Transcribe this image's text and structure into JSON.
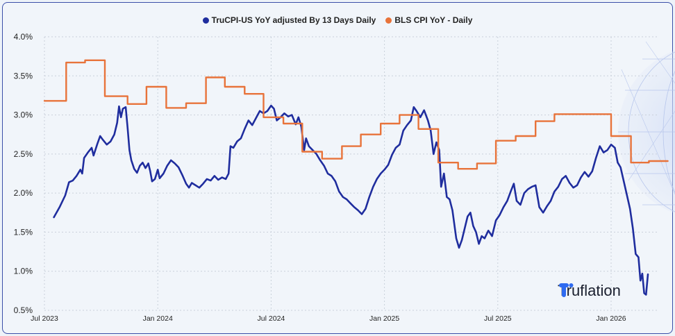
{
  "chart_data": {
    "type": "line",
    "title": "",
    "x_tick_labels": [
      "Jul 2023",
      "Jan 2024",
      "Jul 2024",
      "Jan 2025",
      "Jul 2025",
      "Jan 2026"
    ],
    "y_tick_labels": [
      "4.0%",
      "3.5%",
      "3.0%",
      "2.5%",
      "2.0%",
      "1.5%",
      "1.0%",
      "0.5%"
    ],
    "ylim": [
      0.5,
      4.0
    ],
    "y_unit": "%",
    "x_range_months": [
      0,
      32
    ],
    "series": [
      {
        "name": "TruCPI-US YoY adjusted By 13 Days Daily",
        "color": "#1f2d9e",
        "points": [
          [
            0.5,
            1.69
          ],
          [
            0.8,
            1.82
          ],
          [
            1.1,
            1.97
          ],
          [
            1.3,
            2.14
          ],
          [
            1.5,
            2.16
          ],
          [
            1.7,
            2.22
          ],
          [
            1.9,
            2.3
          ],
          [
            2.0,
            2.25
          ],
          [
            2.1,
            2.45
          ],
          [
            2.3,
            2.52
          ],
          [
            2.5,
            2.58
          ],
          [
            2.6,
            2.48
          ],
          [
            2.8,
            2.63
          ],
          [
            2.95,
            2.73
          ],
          [
            3.1,
            2.68
          ],
          [
            3.3,
            2.62
          ],
          [
            3.5,
            2.66
          ],
          [
            3.7,
            2.75
          ],
          [
            3.85,
            2.9
          ],
          [
            3.95,
            3.11
          ],
          [
            4.05,
            2.97
          ],
          [
            4.15,
            3.08
          ],
          [
            4.3,
            3.1
          ],
          [
            4.4,
            2.84
          ],
          [
            4.5,
            2.55
          ],
          [
            4.6,
            2.42
          ],
          [
            4.75,
            2.31
          ],
          [
            4.9,
            2.26
          ],
          [
            5.05,
            2.35
          ],
          [
            5.2,
            2.39
          ],
          [
            5.35,
            2.32
          ],
          [
            5.5,
            2.38
          ],
          [
            5.6,
            2.28
          ],
          [
            5.7,
            2.15
          ],
          [
            5.85,
            2.18
          ],
          [
            6.0,
            2.3
          ],
          [
            6.1,
            2.19
          ],
          [
            6.3,
            2.25
          ],
          [
            6.5,
            2.35
          ],
          [
            6.7,
            2.42
          ],
          [
            6.9,
            2.38
          ],
          [
            7.1,
            2.33
          ],
          [
            7.3,
            2.23
          ],
          [
            7.5,
            2.12
          ],
          [
            7.65,
            2.07
          ],
          [
            7.8,
            2.13
          ],
          [
            8.0,
            2.1
          ],
          [
            8.2,
            2.07
          ],
          [
            8.4,
            2.12
          ],
          [
            8.6,
            2.18
          ],
          [
            8.8,
            2.16
          ],
          [
            9.0,
            2.22
          ],
          [
            9.2,
            2.17
          ],
          [
            9.4,
            2.2
          ],
          [
            9.6,
            2.18
          ],
          [
            9.75,
            2.25
          ],
          [
            9.85,
            2.6
          ],
          [
            10.0,
            2.58
          ],
          [
            10.2,
            2.66
          ],
          [
            10.4,
            2.7
          ],
          [
            10.6,
            2.82
          ],
          [
            10.8,
            2.93
          ],
          [
            11.0,
            2.87
          ],
          [
            11.2,
            2.96
          ],
          [
            11.4,
            3.05
          ],
          [
            11.6,
            3.02
          ],
          [
            11.8,
            3.05
          ],
          [
            12.0,
            3.12
          ],
          [
            12.15,
            3.08
          ],
          [
            12.3,
            2.93
          ],
          [
            12.5,
            2.97
          ],
          [
            12.7,
            3.02
          ],
          [
            12.9,
            2.98
          ],
          [
            13.1,
            3.0
          ],
          [
            13.3,
            2.88
          ],
          [
            13.45,
            2.97
          ],
          [
            13.6,
            2.85
          ],
          [
            13.75,
            2.55
          ],
          [
            13.85,
            2.7
          ],
          [
            14.0,
            2.6
          ],
          [
            14.2,
            2.55
          ],
          [
            14.4,
            2.5
          ],
          [
            14.6,
            2.42
          ],
          [
            14.8,
            2.35
          ],
          [
            15.0,
            2.25
          ],
          [
            15.2,
            2.22
          ],
          [
            15.4,
            2.15
          ],
          [
            15.6,
            2.02
          ],
          [
            15.8,
            1.95
          ],
          [
            16.0,
            1.92
          ],
          [
            16.2,
            1.87
          ],
          [
            16.4,
            1.82
          ],
          [
            16.6,
            1.78
          ],
          [
            16.8,
            1.73
          ],
          [
            17.0,
            1.8
          ],
          [
            17.2,
            1.95
          ],
          [
            17.4,
            2.08
          ],
          [
            17.6,
            2.18
          ],
          [
            17.8,
            2.25
          ],
          [
            18.0,
            2.3
          ],
          [
            18.2,
            2.36
          ],
          [
            18.4,
            2.49
          ],
          [
            18.6,
            2.58
          ],
          [
            18.8,
            2.62
          ],
          [
            19.0,
            2.8
          ],
          [
            19.2,
            2.87
          ],
          [
            19.4,
            2.93
          ],
          [
            19.55,
            3.1
          ],
          [
            19.7,
            3.05
          ],
          [
            19.9,
            2.97
          ],
          [
            20.1,
            3.06
          ],
          [
            20.3,
            2.93
          ],
          [
            20.45,
            2.8
          ],
          [
            20.6,
            2.5
          ],
          [
            20.75,
            2.65
          ],
          [
            20.9,
            2.55
          ],
          [
            21.0,
            2.08
          ],
          [
            21.15,
            2.25
          ],
          [
            21.3,
            1.95
          ],
          [
            21.45,
            1.92
          ],
          [
            21.6,
            1.78
          ],
          [
            21.8,
            1.42
          ],
          [
            21.95,
            1.3
          ],
          [
            22.1,
            1.4
          ],
          [
            22.25,
            1.55
          ],
          [
            22.4,
            1.7
          ],
          [
            22.55,
            1.75
          ],
          [
            22.7,
            1.58
          ],
          [
            22.85,
            1.5
          ],
          [
            23.0,
            1.35
          ],
          [
            23.15,
            1.45
          ],
          [
            23.3,
            1.42
          ],
          [
            23.5,
            1.52
          ],
          [
            23.7,
            1.45
          ],
          [
            23.9,
            1.65
          ],
          [
            24.1,
            1.72
          ],
          [
            24.3,
            1.82
          ],
          [
            24.5,
            1.9
          ],
          [
            24.7,
            2.03
          ],
          [
            24.85,
            2.12
          ],
          [
            25.0,
            1.9
          ],
          [
            25.2,
            1.85
          ],
          [
            25.4,
            2.0
          ],
          [
            25.6,
            2.05
          ],
          [
            25.8,
            2.08
          ],
          [
            26.0,
            2.1
          ],
          [
            26.2,
            1.82
          ],
          [
            26.4,
            1.75
          ],
          [
            26.6,
            1.83
          ],
          [
            26.8,
            1.9
          ],
          [
            27.0,
            2.02
          ],
          [
            27.2,
            2.08
          ],
          [
            27.4,
            2.18
          ],
          [
            27.6,
            2.22
          ],
          [
            27.8,
            2.13
          ],
          [
            28.0,
            2.07
          ],
          [
            28.2,
            2.1
          ],
          [
            28.4,
            2.2
          ],
          [
            28.6,
            2.27
          ],
          [
            28.8,
            2.21
          ],
          [
            29.0,
            2.28
          ],
          [
            29.2,
            2.45
          ],
          [
            29.4,
            2.6
          ],
          [
            29.6,
            2.52
          ],
          [
            29.8,
            2.55
          ],
          [
            30.0,
            2.62
          ],
          [
            30.2,
            2.58
          ],
          [
            30.35,
            2.39
          ],
          [
            30.5,
            2.33
          ],
          [
            30.7,
            2.12
          ],
          [
            30.85,
            1.96
          ],
          [
            31.0,
            1.8
          ],
          [
            31.15,
            1.55
          ],
          [
            31.3,
            1.22
          ],
          [
            31.45,
            1.18
          ],
          [
            31.55,
            0.88
          ],
          [
            31.65,
            0.97
          ],
          [
            31.75,
            0.72
          ],
          [
            31.85,
            0.7
          ],
          [
            31.95,
            0.96
          ]
        ]
      },
      {
        "name": "BLS CPI YoY - Daily",
        "color": "#e8733a",
        "points": [
          [
            0,
            3.18
          ],
          [
            1.15,
            3.18
          ],
          [
            1.15,
            3.67
          ],
          [
            2.15,
            3.67
          ],
          [
            2.15,
            3.7
          ],
          [
            3.2,
            3.7
          ],
          [
            3.2,
            3.24
          ],
          [
            4.4,
            3.24
          ],
          [
            4.4,
            3.14
          ],
          [
            5.4,
            3.14
          ],
          [
            5.4,
            3.36
          ],
          [
            6.45,
            3.36
          ],
          [
            6.45,
            3.09
          ],
          [
            7.5,
            3.09
          ],
          [
            7.5,
            3.15
          ],
          [
            8.55,
            3.15
          ],
          [
            8.55,
            3.48
          ],
          [
            9.55,
            3.48
          ],
          [
            9.55,
            3.36
          ],
          [
            10.6,
            3.36
          ],
          [
            10.6,
            3.27
          ],
          [
            11.6,
            3.27
          ],
          [
            11.6,
            2.97
          ],
          [
            12.65,
            2.97
          ],
          [
            12.65,
            2.89
          ],
          [
            13.65,
            2.89
          ],
          [
            13.65,
            2.53
          ],
          [
            14.7,
            2.53
          ],
          [
            14.7,
            2.44
          ],
          [
            15.75,
            2.44
          ],
          [
            15.75,
            2.6
          ],
          [
            16.75,
            2.6
          ],
          [
            16.75,
            2.75
          ],
          [
            17.8,
            2.75
          ],
          [
            17.8,
            2.89
          ],
          [
            18.8,
            2.89
          ],
          [
            18.8,
            3.0
          ],
          [
            19.8,
            3.0
          ],
          [
            19.8,
            2.82
          ],
          [
            20.85,
            2.82
          ],
          [
            20.85,
            2.39
          ],
          [
            21.9,
            2.39
          ],
          [
            21.9,
            2.31
          ],
          [
            22.9,
            2.31
          ],
          [
            22.9,
            2.38
          ],
          [
            23.9,
            2.38
          ],
          [
            23.9,
            2.67
          ],
          [
            24.95,
            2.67
          ],
          [
            24.95,
            2.73
          ],
          [
            26.0,
            2.73
          ],
          [
            26.0,
            2.92
          ],
          [
            27.0,
            2.92
          ],
          [
            27.0,
            3.01
          ],
          [
            30.0,
            3.01
          ],
          [
            30.0,
            2.73
          ],
          [
            31.05,
            2.73
          ],
          [
            31.05,
            2.39
          ],
          [
            32.0,
            2.39
          ],
          [
            32.0,
            2.41
          ],
          [
            33.0,
            2.41
          ]
        ]
      }
    ]
  },
  "brand": {
    "name": "Truflation"
  }
}
